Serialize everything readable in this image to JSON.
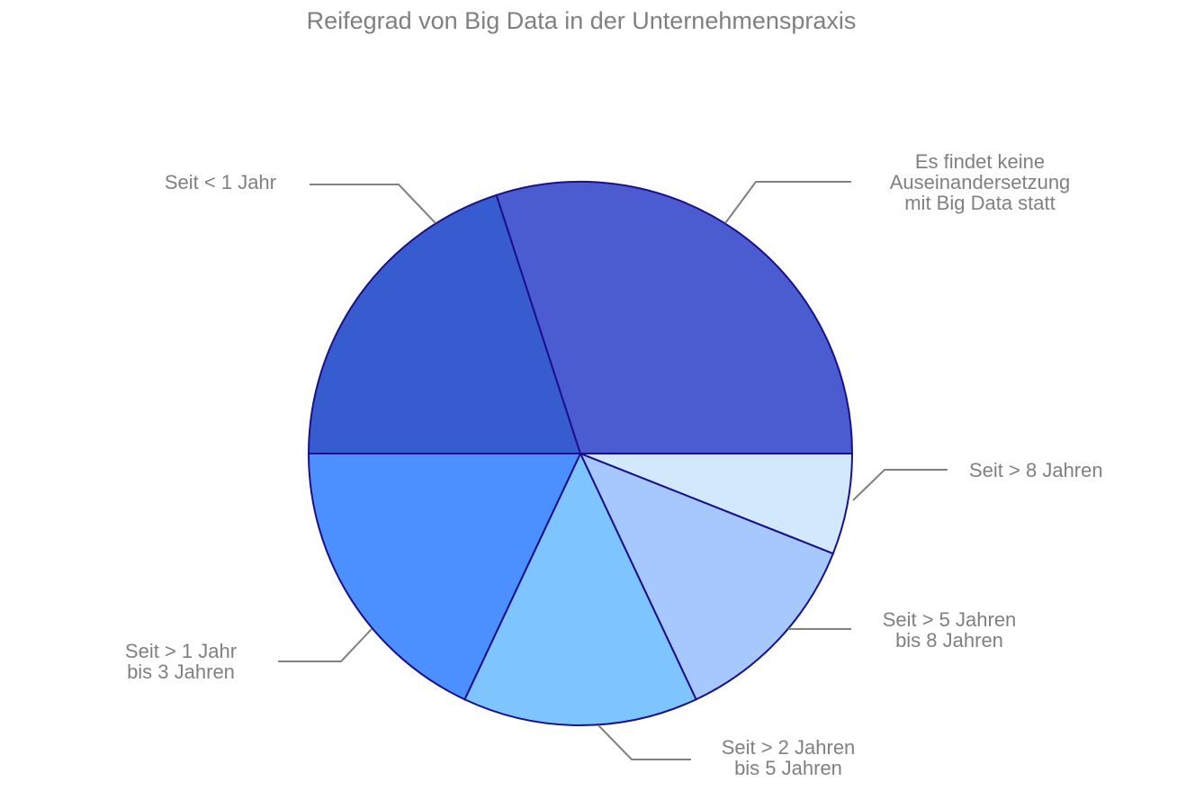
{
  "chart_data": {
    "type": "pie",
    "title": "Reifegrad von Big Data in der Unternehmenspraxis",
    "start_angle_deg": 0,
    "direction": "clockwise",
    "slices": [
      {
        "label": "Seit > 8 Jahren",
        "value": 6,
        "color": "#d2e8fd"
      },
      {
        "label": "Seit > 5 Jahren bis 8 Jahren",
        "value": 12,
        "color": "#a7c8fe"
      },
      {
        "label": "Seit > 2 Jahren bis 5 Jahren",
        "value": 14,
        "color": "#7ec4fe"
      },
      {
        "label": "Seit > 1 Jahr bis 3 Jahren",
        "value": 18,
        "color": "#4b90fe"
      },
      {
        "label": "Seit < 1 Jahr",
        "value": 20,
        "color": "#375cd0"
      },
      {
        "label": "Es findet keine Auseinandersetzung mit Big Data statt",
        "value": 30,
        "color": "#4a5cd0"
      }
    ],
    "slice_label_lines": [
      [
        "Seit > 8 Jahren"
      ],
      [
        "Seit > 5 Jahren",
        "bis 8 Jahren"
      ],
      [
        "Seit > 2 Jahren",
        "bis 5 Jahren"
      ],
      [
        "Seit > 1 Jahr",
        "bis 3 Jahren"
      ],
      [
        "Seit < 1 Jahr"
      ],
      [
        "Es findet keine",
        "Auseinandersetzung",
        "mit Big Data statt"
      ]
    ]
  }
}
